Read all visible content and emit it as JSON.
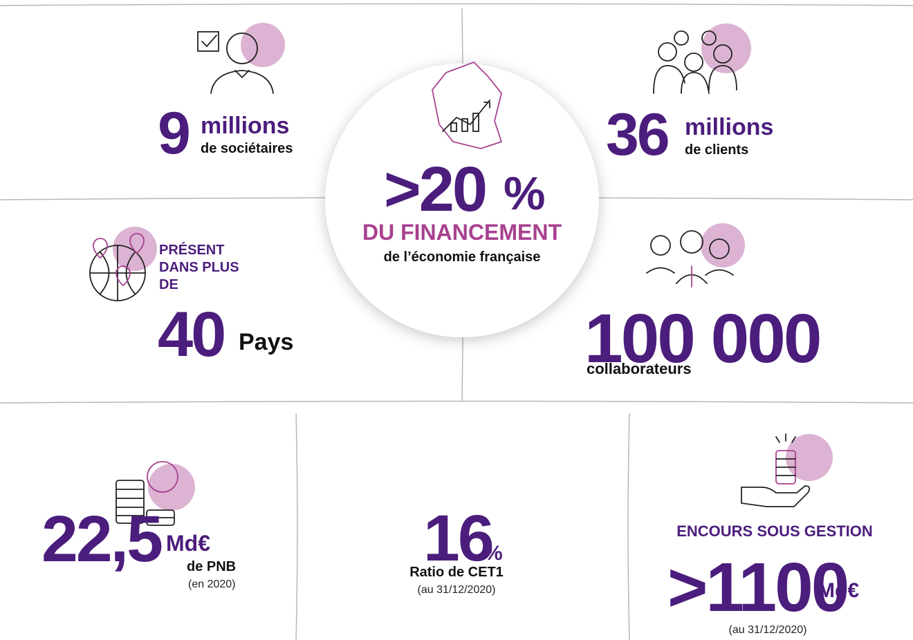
{
  "stats": {
    "societaires": {
      "number": "9",
      "unit": "millions",
      "label": "de sociétaires"
    },
    "clients": {
      "number": "36",
      "unit": "millions",
      "label": "de clients"
    },
    "financement": {
      "number": ">20",
      "unit": "%",
      "headline": "DU FINANCEMENT",
      "label": "de l’économie française"
    },
    "pays": {
      "heading": "PRÉSENT DANS PLUS DE",
      "number": "40",
      "unit": "Pays"
    },
    "collaborateurs": {
      "number": "100 000",
      "label": "collaborateurs"
    },
    "pnb": {
      "number": "22,5",
      "unit": "Md€",
      "label": "de PNB",
      "note": "(en 2020)"
    },
    "cet1": {
      "number": "16",
      "unit": "%",
      "label": "Ratio de CET1",
      "note": "(au 31/12/2020)"
    },
    "encours": {
      "heading": "ENCOURS SOUS GESTION",
      "number": ">1100",
      "unit": "Md€",
      "note": "(au 31/12/2020)"
    }
  }
}
